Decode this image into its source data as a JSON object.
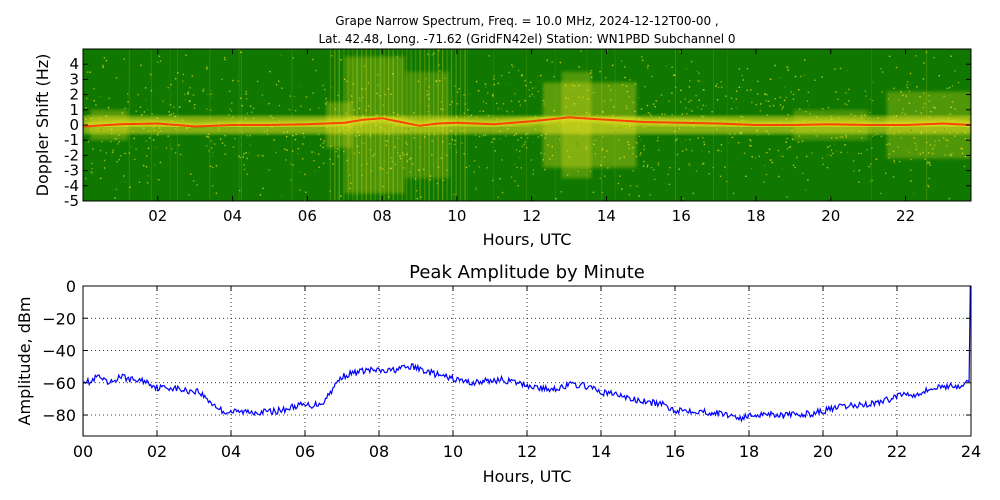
{
  "colors": {
    "background": "#ffffff",
    "spectrogram_low": "#107800",
    "spectrogram_mid": "#e8e020",
    "spectrogram_high": "#ff2a00",
    "line": "#0000ff"
  },
  "chart_data": [
    {
      "type": "heatmap",
      "title_line1": "Grape Narrow Spectrum, Freq. = 10.0 MHz, 2024-12-12T00-00 ,",
      "title_line2": "Lat.  42.48, Long. -71.62 (GridFN42el) Station: WN1PBD Subchannel 0",
      "xlabel": "Hours, UTC",
      "ylabel": "Doppler Shift (Hz)",
      "xlim": [
        0,
        23.75
      ],
      "ylim": [
        -5,
        5
      ],
      "x_ticks": [
        2,
        4,
        6,
        8,
        10,
        12,
        14,
        16,
        18,
        20,
        22
      ],
      "x_tick_labels": [
        "02",
        "04",
        "06",
        "08",
        "10",
        "12",
        "14",
        "16",
        "18",
        "20",
        "22"
      ],
      "y_ticks": [
        -5,
        -4,
        -3,
        -2,
        -1,
        0,
        1,
        2,
        3,
        4
      ],
      "y_tick_labels": [
        "-5",
        "-4",
        "-3",
        "-2",
        "-1",
        "0",
        "1",
        "2",
        "3",
        "4"
      ],
      "doppler_trace": {
        "hours": [
          0,
          1,
          2,
          3,
          4,
          5,
          6,
          7,
          7.5,
          8,
          8.5,
          9,
          9.5,
          10,
          11,
          12,
          13,
          14,
          15,
          16,
          17,
          18,
          19,
          20,
          21,
          22,
          23,
          23.75
        ],
        "shift_hz": [
          -0.1,
          0.05,
          0.1,
          -0.1,
          0,
          0,
          0.05,
          0.15,
          0.35,
          0.45,
          0.2,
          -0.05,
          0.1,
          0.15,
          0.05,
          0.25,
          0.5,
          0.35,
          0.2,
          0.15,
          0.1,
          0.0,
          0.0,
          0.05,
          0.0,
          0.0,
          0.1,
          0.0
        ]
      }
    },
    {
      "type": "line",
      "title": "Peak Amplitude by Minute",
      "xlabel": "Hours, UTC",
      "ylabel": "Amplitude, dBm",
      "xlim": [
        0,
        24
      ],
      "ylim": [
        -93,
        0
      ],
      "grid": true,
      "x_ticks": [
        0,
        2,
        4,
        6,
        8,
        10,
        12,
        14,
        16,
        18,
        20,
        22,
        24
      ],
      "x_tick_labels": [
        "00",
        "02",
        "04",
        "06",
        "08",
        "10",
        "12",
        "14",
        "16",
        "18",
        "20",
        "22",
        "24"
      ],
      "y_ticks": [
        0,
        -20,
        -40,
        -60,
        -80
      ],
      "y_tick_labels": [
        "0",
        "−20",
        "−40",
        "−60",
        "−80"
      ],
      "series": [
        {
          "name": "Peak Amplitude",
          "x": [
            0,
            0.2,
            0.4,
            0.7,
            1.0,
            1.3,
            1.7,
            2.0,
            2.4,
            2.8,
            3.1,
            3.5,
            3.8,
            4.2,
            4.6,
            5.0,
            5.4,
            5.8,
            6.2,
            6.5,
            6.8,
            7.0,
            7.3,
            7.7,
            8.2,
            8.6,
            8.9,
            9.3,
            9.7,
            10.1,
            10.5,
            10.9,
            11.3,
            11.7,
            12.1,
            12.5,
            12.9,
            13.2,
            13.6,
            14.0,
            14.4,
            14.8,
            15.2,
            15.6,
            16.0,
            16.4,
            16.8,
            17.2,
            17.5,
            17.8,
            18.1,
            18.5,
            18.9,
            19.3,
            19.7,
            20.1,
            20.5,
            20.9,
            21.3,
            21.7,
            22.1,
            22.5,
            22.9,
            23.3,
            23.7,
            23.95
          ],
          "values": [
            -58,
            -60,
            -56,
            -61,
            -56,
            -58,
            -59,
            -63,
            -63,
            -65,
            -65,
            -73,
            -78,
            -78,
            -78,
            -78,
            -77,
            -74,
            -74,
            -72,
            -62,
            -56,
            -54,
            -52,
            -53,
            -51,
            -50,
            -53,
            -56,
            -58,
            -60,
            -59,
            -58,
            -60,
            -62,
            -64,
            -63,
            -61,
            -62,
            -66,
            -67,
            -70,
            -72,
            -73,
            -77,
            -77,
            -78,
            -79,
            -80,
            -82,
            -80,
            -79,
            -80,
            -80,
            -79,
            -77,
            -75,
            -74,
            -73,
            -71,
            -67,
            -67,
            -64,
            -62,
            -62,
            -60
          ]
        }
      ]
    }
  ]
}
